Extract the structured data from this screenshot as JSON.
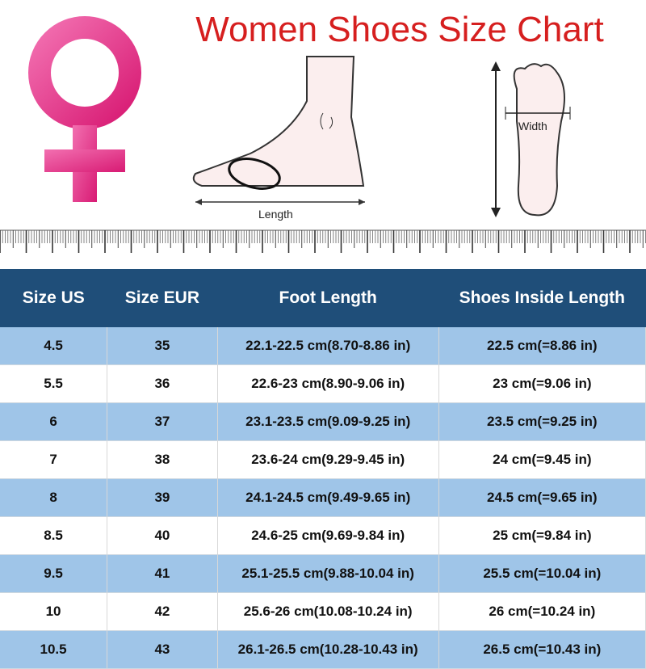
{
  "title": "Women Shoes Size Chart",
  "diagram": {
    "length_label": "Length",
    "width_label": "Width"
  },
  "colors": {
    "title": "#d61f1f",
    "header": "#1f4e79",
    "stripe": "#9fc5e8",
    "female_symbol": "#e8408f"
  },
  "table": {
    "headers": [
      "Size US",
      "Size EUR",
      "Foot Length",
      "Shoes Inside Length"
    ],
    "rows": [
      [
        "4.5",
        "35",
        "22.1-22.5 cm(8.70-8.86 in)",
        "22.5 cm(=8.86 in)"
      ],
      [
        "5.5",
        "36",
        "22.6-23 cm(8.90-9.06 in)",
        "23 cm(=9.06 in)"
      ],
      [
        "6",
        "37",
        "23.1-23.5 cm(9.09-9.25 in)",
        "23.5 cm(=9.25 in)"
      ],
      [
        "7",
        "38",
        "23.6-24 cm(9.29-9.45 in)",
        "24 cm(=9.45 in)"
      ],
      [
        "8",
        "39",
        "24.1-24.5 cm(9.49-9.65 in)",
        "24.5 cm(=9.65 in)"
      ],
      [
        "8.5",
        "40",
        "24.6-25 cm(9.69-9.84 in)",
        "25 cm(=9.84 in)"
      ],
      [
        "9.5",
        "41",
        "25.1-25.5 cm(9.88-10.04 in)",
        "25.5 cm(=10.04 in)"
      ],
      [
        "10",
        "42",
        "25.6-26 cm(10.08-10.24 in)",
        "26 cm(=10.24 in)"
      ],
      [
        "10.5",
        "43",
        "26.1-26.5 cm(10.28-10.43 in)",
        "26.5 cm(=10.43 in)"
      ]
    ]
  }
}
